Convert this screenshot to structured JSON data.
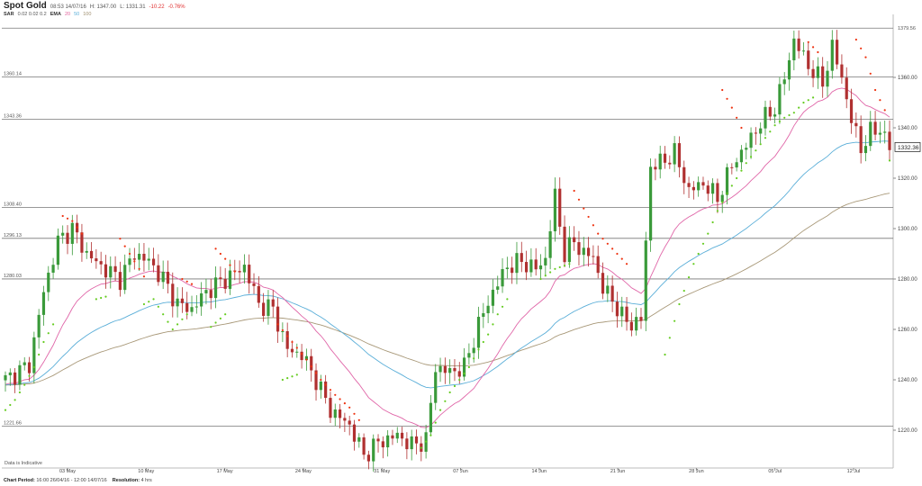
{
  "header": {
    "instrument": "Spot Gold",
    "time": "08:53 14/07/16",
    "high": "H: 1347.00",
    "low": "L: 1331.31",
    "change": "-10.22",
    "change_pct": "-0.76%",
    "sar_label": "SAR",
    "sar_params": "0.02 0.02 0.2",
    "ema_label": "EMA",
    "ema_20": "20",
    "ema_50": "50",
    "ema_100": "100"
  },
  "footer": {
    "disclaimer": "Data is Indicative",
    "period_label": "Chart Period:",
    "period_value": "16:00 26/04/16 - 12:00 14/07/16",
    "resolution_label": "Resolution:",
    "resolution_value": "4 hrs"
  },
  "colors": {
    "up": "#3a9a3a",
    "down": "#b03030",
    "sar_up": "#66cc22",
    "sar_down": "#ee3311",
    "ema20": "#e066a8",
    "ema50": "#5aaed8",
    "ema100": "#a89878",
    "level_line": "#777777"
  },
  "chart_data": {
    "type": "candlestick",
    "ylim": [
      1205,
      1385
    ],
    "y_ticks": [
      1220,
      1240,
      1260,
      1280,
      1300,
      1320,
      1340,
      1360
    ],
    "y_tick_labels": [
      "1220.00",
      "1240.00",
      "1260.00",
      "1280.00",
      "1300.00",
      "1320.00",
      "1340.00",
      "1360.00"
    ],
    "x_labels": [
      "03 May",
      "10 May",
      "17 May",
      "24 May",
      "31 May",
      "07 Jun",
      "14 Jun",
      "21 Jun",
      "28 Jun",
      "05 Jul",
      "12 Jul"
    ],
    "levels": [
      {
        "value": 1379.56,
        "label": "1379.56",
        "side": "right"
      },
      {
        "value": 1360.14,
        "label": "1360.14",
        "side": "left"
      },
      {
        "value": 1343.36,
        "label": "1343.36",
        "side": "left"
      },
      {
        "value": 1308.4,
        "label": "1308.40",
        "side": "left"
      },
      {
        "value": 1296.13,
        "label": "1296.13",
        "side": "left"
      },
      {
        "value": 1280.03,
        "label": "1280.03",
        "side": "left"
      },
      {
        "value": 1221.66,
        "label": "1221.66",
        "side": "left"
      }
    ],
    "last_price": "1332.36",
    "last_value": 1332.36,
    "close_path": [
      [
        0,
        1240
      ],
      [
        5,
        1246
      ],
      [
        8,
        1275
      ],
      [
        11,
        1295
      ],
      [
        14,
        1300
      ],
      [
        17,
        1290
      ],
      [
        20,
        1285
      ],
      [
        24,
        1280
      ],
      [
        27,
        1290
      ],
      [
        30,
        1287
      ],
      [
        33,
        1280
      ],
      [
        36,
        1270
      ],
      [
        39,
        1268
      ],
      [
        42,
        1275
      ],
      [
        46,
        1280
      ],
      [
        50,
        1285
      ],
      [
        53,
        1270
      ],
      [
        56,
        1268
      ],
      [
        59,
        1252
      ],
      [
        62,
        1250
      ],
      [
        65,
        1240
      ],
      [
        68,
        1228
      ],
      [
        72,
        1222
      ],
      [
        75,
        1210
      ],
      [
        78,
        1215
      ],
      [
        82,
        1218
      ],
      [
        85,
        1214
      ],
      [
        88,
        1216
      ],
      [
        90,
        1245
      ],
      [
        93,
        1243
      ],
      [
        96,
        1245
      ],
      [
        99,
        1262
      ],
      [
        102,
        1275
      ],
      [
        105,
        1285
      ],
      [
        108,
        1287
      ],
      [
        111,
        1284
      ],
      [
        113,
        1288
      ],
      [
        115,
        1313
      ],
      [
        117,
        1290
      ],
      [
        119,
        1295
      ],
      [
        121,
        1290
      ],
      [
        123,
        1289
      ],
      [
        125,
        1276
      ],
      [
        127,
        1272
      ],
      [
        129,
        1265
      ],
      [
        131,
        1262
      ],
      [
        133,
        1264
      ],
      [
        135,
        1325
      ],
      [
        137,
        1326
      ],
      [
        140,
        1330
      ],
      [
        143,
        1315
      ],
      [
        146,
        1318
      ],
      [
        149,
        1312
      ],
      [
        152,
        1325
      ],
      [
        155,
        1333
      ],
      [
        158,
        1342
      ],
      [
        161,
        1348
      ],
      [
        163,
        1360
      ],
      [
        165,
        1375
      ],
      [
        167,
        1368
      ],
      [
        169,
        1362
      ],
      [
        171,
        1358
      ],
      [
        173,
        1372
      ],
      [
        175,
        1360
      ],
      [
        177,
        1343
      ],
      [
        179,
        1332
      ],
      [
        181,
        1338
      ],
      [
        183,
        1340
      ],
      [
        185,
        1332
      ]
    ],
    "sar_down": [
      [
        12,
        1305
      ],
      [
        14,
        1303
      ],
      [
        16,
        1298
      ],
      [
        24,
        1296
      ],
      [
        26,
        1290
      ],
      [
        29,
        1281
      ],
      [
        37,
        1280
      ],
      [
        39,
        1278
      ],
      [
        44,
        1292
      ],
      [
        46,
        1288
      ],
      [
        48,
        1283
      ],
      [
        57,
        1262
      ],
      [
        60,
        1255
      ],
      [
        63,
        1248
      ],
      [
        66,
        1240
      ],
      [
        69,
        1234
      ],
      [
        72,
        1229
      ],
      [
        74,
        1224
      ],
      [
        119,
        1315
      ],
      [
        121,
        1308
      ],
      [
        124,
        1298
      ],
      [
        127,
        1292
      ],
      [
        130,
        1286
      ],
      [
        150,
        1355
      ],
      [
        152,
        1348
      ],
      [
        154,
        1340
      ],
      [
        168,
        1374
      ],
      [
        170,
        1370
      ],
      [
        178,
        1375
      ],
      [
        180,
        1368
      ],
      [
        182,
        1355
      ],
      [
        184,
        1347
      ]
    ],
    "sar_up": [
      [
        0,
        1228
      ],
      [
        2,
        1232
      ],
      [
        4,
        1238
      ],
      [
        6,
        1245
      ],
      [
        8,
        1255
      ],
      [
        10,
        1262
      ],
      [
        19,
        1272
      ],
      [
        21,
        1273
      ],
      [
        29,
        1270
      ],
      [
        31,
        1272
      ],
      [
        35,
        1260
      ],
      [
        38,
        1266
      ],
      [
        43,
        1261
      ],
      [
        46,
        1266
      ],
      [
        58,
        1240
      ],
      [
        61,
        1242
      ],
      [
        87,
        1213
      ],
      [
        89,
        1218
      ],
      [
        91,
        1228
      ],
      [
        93,
        1235
      ],
      [
        95,
        1240
      ],
      [
        97,
        1245
      ],
      [
        99,
        1252
      ],
      [
        101,
        1258
      ],
      [
        103,
        1266
      ],
      [
        105,
        1272
      ],
      [
        112,
        1280
      ],
      [
        115,
        1284
      ],
      [
        118,
        1286
      ],
      [
        138,
        1250
      ],
      [
        141,
        1270
      ],
      [
        144,
        1286
      ],
      [
        147,
        1298
      ],
      [
        149,
        1307
      ],
      [
        151,
        1314
      ],
      [
        153,
        1320
      ],
      [
        155,
        1326
      ],
      [
        157,
        1331
      ],
      [
        159,
        1336
      ],
      [
        161,
        1341
      ],
      [
        163,
        1344
      ],
      [
        165,
        1346
      ],
      [
        167,
        1350
      ],
      [
        169,
        1352
      ],
      [
        185,
        1327
      ]
    ]
  }
}
